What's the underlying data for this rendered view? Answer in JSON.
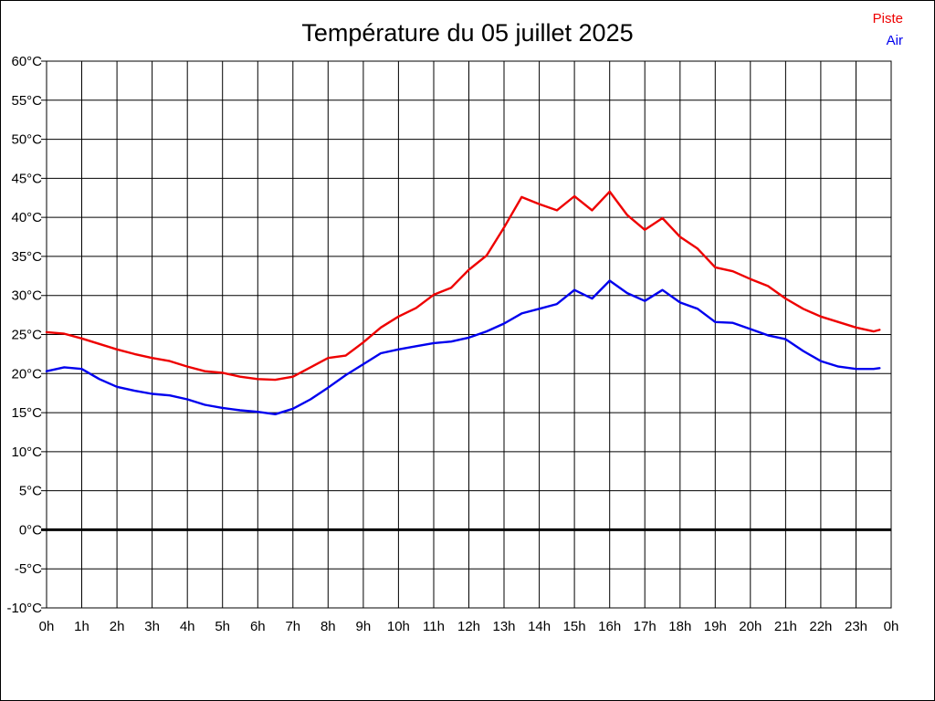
{
  "window": {
    "background": "#ffffff",
    "frame_border_color": "#000000"
  },
  "chart_data": {
    "type": "line",
    "title": "Température du 05 juillet 2025",
    "grid": true,
    "grid_color": "#000000",
    "baseline_value": 0,
    "legend": {
      "position": "top-right",
      "entries": [
        {
          "label": "Piste",
          "color": "#ee0000"
        },
        {
          "label": "Air",
          "color": "#0000ee"
        }
      ]
    },
    "y_axis": {
      "unit": "°C",
      "range": [
        -10,
        60
      ],
      "tick_values": [
        60,
        55,
        50,
        45,
        40,
        35,
        30,
        25,
        20,
        15,
        10,
        5,
        0,
        -5,
        -10
      ],
      "tick_labels": [
        "60°C",
        "55°C",
        "50°C",
        "45°C",
        "40°C",
        "35°C",
        "30°C",
        "25°C",
        "20°C",
        "15°C",
        "10°C",
        "5°C",
        "0°C",
        "-5°C",
        "-10°C"
      ]
    },
    "x_axis": {
      "unit": "h",
      "range": [
        0,
        24
      ],
      "tick_values": [
        0,
        1,
        2,
        3,
        4,
        5,
        6,
        7,
        8,
        9,
        10,
        11,
        12,
        13,
        14,
        15,
        16,
        17,
        18,
        19,
        20,
        21,
        22,
        23,
        24
      ],
      "tick_labels": [
        "0h",
        "1h",
        "2h",
        "3h",
        "4h",
        "5h",
        "6h",
        "7h",
        "8h",
        "9h",
        "10h",
        "11h",
        "12h",
        "13h",
        "14h",
        "15h",
        "16h",
        "17h",
        "18h",
        "19h",
        "20h",
        "21h",
        "22h",
        "23h",
        "0h"
      ]
    },
    "x": [
      0,
      0.5,
      1,
      1.5,
      2,
      2.5,
      3,
      3.5,
      4,
      4.5,
      5,
      5.5,
      6,
      6.5,
      7,
      7.5,
      8,
      8.5,
      9,
      9.5,
      10,
      10.5,
      11,
      11.5,
      12,
      12.5,
      13,
      13.5,
      14,
      14.5,
      15,
      15.5,
      16,
      16.5,
      17,
      17.5,
      18,
      18.5,
      19,
      19.5,
      20,
      20.5,
      21,
      21.5,
      22,
      22.5,
      23,
      23.5,
      23.67
    ],
    "series": [
      {
        "name": "Piste",
        "color": "#ee0000",
        "values": [
          25.3,
          25.1,
          24.5,
          23.8,
          23.1,
          22.5,
          22.0,
          21.6,
          20.9,
          20.3,
          20.1,
          19.6,
          19.3,
          19.2,
          19.6,
          20.8,
          22.0,
          22.3,
          24.0,
          25.9,
          27.3,
          28.4,
          30.1,
          31.0,
          33.3,
          35.1,
          38.7,
          42.6,
          41.7,
          40.9,
          42.7,
          40.9,
          43.3,
          40.3,
          38.4,
          39.9,
          37.5,
          36.0,
          33.6,
          33.1,
          32.1,
          31.2,
          29.6,
          28.3,
          27.3,
          26.6,
          25.9,
          25.4,
          25.6
        ]
      },
      {
        "name": "Air",
        "color": "#0000ee",
        "values": [
          20.3,
          20.8,
          20.6,
          19.3,
          18.3,
          17.8,
          17.4,
          17.2,
          16.7,
          16.0,
          15.6,
          15.3,
          15.1,
          14.8,
          15.5,
          16.7,
          18.2,
          19.8,
          21.2,
          22.6,
          23.1,
          23.5,
          23.9,
          24.1,
          24.6,
          25.4,
          26.4,
          27.7,
          28.3,
          28.9,
          30.7,
          29.6,
          31.9,
          30.3,
          29.3,
          30.7,
          29.1,
          28.3,
          26.6,
          26.5,
          25.7,
          24.9,
          24.4,
          22.9,
          21.6,
          20.9,
          20.6,
          20.6,
          20.7
        ]
      }
    ]
  }
}
